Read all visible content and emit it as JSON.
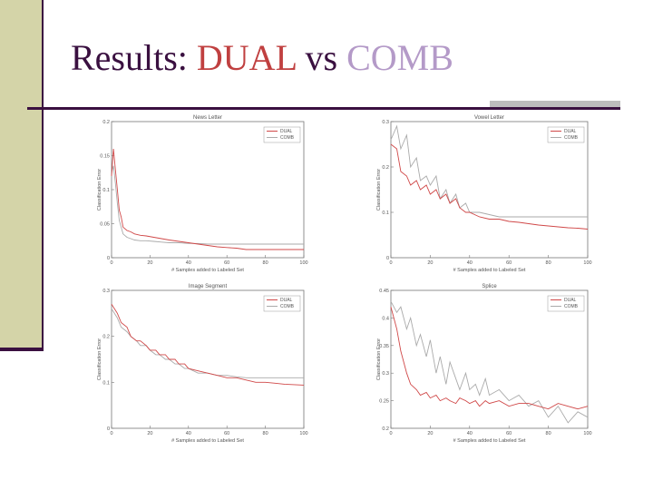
{
  "slide": {
    "title_prefix": "Results: ",
    "title_dual": "DUAL",
    "title_vs": " vs ",
    "title_comb": "COMB",
    "dual_color": "#c04040",
    "comb_color": "#b49ac8"
  },
  "chart_data": [
    {
      "type": "line",
      "title": "News Letter",
      "xlabel": "# Samples added to Labeled Set",
      "ylabel": "Classification Error",
      "xlim": [
        0,
        100
      ],
      "ylim": [
        0,
        0.2
      ],
      "xticks": [
        "0",
        "20",
        "40",
        "60",
        "80",
        "100"
      ],
      "yticks": [
        "0",
        "0.05",
        "0.1",
        "0.15",
        "0.2"
      ],
      "legend": [
        "DUAL",
        "COMB"
      ],
      "legend_position": "top-right",
      "series": [
        {
          "name": "DUAL",
          "color": "#d04848",
          "x": [
            0,
            1,
            2,
            3,
            4,
            5,
            6,
            8,
            10,
            12,
            15,
            18,
            22,
            26,
            30,
            35,
            40,
            45,
            50,
            55,
            60,
            65,
            70,
            75,
            80,
            85,
            90,
            95,
            100
          ],
          "y": [
            0.12,
            0.16,
            0.13,
            0.1,
            0.07,
            0.06,
            0.045,
            0.04,
            0.038,
            0.035,
            0.033,
            0.032,
            0.03,
            0.028,
            0.026,
            0.024,
            0.022,
            0.02,
            0.018,
            0.016,
            0.015,
            0.014,
            0.012,
            0.012,
            0.012,
            0.012,
            0.012,
            0.012,
            0.012
          ]
        },
        {
          "name": "COMB",
          "color": "#aaaaaa",
          "x": [
            0,
            1,
            2,
            3,
            4,
            5,
            6,
            8,
            10,
            12,
            15,
            18,
            22,
            26,
            30,
            35,
            40,
            45,
            50,
            55,
            60,
            65,
            70,
            75,
            80,
            85,
            90,
            95,
            100
          ],
          "y": [
            0.125,
            0.135,
            0.11,
            0.08,
            0.055,
            0.045,
            0.035,
            0.03,
            0.028,
            0.026,
            0.025,
            0.025,
            0.024,
            0.023,
            0.022,
            0.022,
            0.021,
            0.021,
            0.02,
            0.02,
            0.02,
            0.02,
            0.02,
            0.02,
            0.02,
            0.02,
            0.02,
            0.02,
            0.02
          ]
        }
      ]
    },
    {
      "type": "line",
      "title": "Vowel Letter",
      "xlabel": "# Samples added to Labeled Set",
      "ylabel": "Classification Error",
      "xlim": [
        0,
        100
      ],
      "ylim": [
        0,
        0.3
      ],
      "xticks": [
        "0",
        "20",
        "40",
        "60",
        "80",
        "100"
      ],
      "yticks": [
        "0",
        "0.1",
        "0.2",
        "0.3"
      ],
      "legend": [
        "DUAL",
        "COMB"
      ],
      "legend_position": "top-right",
      "series": [
        {
          "name": "DUAL",
          "color": "#d04848",
          "x": [
            0,
            3,
            5,
            8,
            10,
            13,
            15,
            18,
            20,
            23,
            25,
            28,
            30,
            33,
            35,
            38,
            40,
            45,
            50,
            55,
            60,
            65,
            70,
            75,
            80,
            85,
            90,
            95,
            100
          ],
          "y": [
            0.25,
            0.24,
            0.19,
            0.18,
            0.16,
            0.17,
            0.15,
            0.16,
            0.14,
            0.15,
            0.13,
            0.14,
            0.12,
            0.13,
            0.11,
            0.1,
            0.1,
            0.09,
            0.085,
            0.085,
            0.08,
            0.078,
            0.075,
            0.072,
            0.07,
            0.068,
            0.066,
            0.065,
            0.063
          ]
        },
        {
          "name": "COMB",
          "color": "#aaaaaa",
          "x": [
            0,
            3,
            5,
            8,
            10,
            13,
            15,
            18,
            20,
            23,
            25,
            28,
            30,
            33,
            35,
            38,
            40,
            45,
            50,
            55,
            60,
            65,
            70,
            75,
            80,
            85,
            90,
            95,
            100
          ],
          "y": [
            0.26,
            0.29,
            0.24,
            0.27,
            0.2,
            0.22,
            0.17,
            0.18,
            0.16,
            0.18,
            0.13,
            0.15,
            0.12,
            0.14,
            0.11,
            0.12,
            0.1,
            0.1,
            0.095,
            0.09,
            0.09,
            0.09,
            0.09,
            0.09,
            0.09,
            0.09,
            0.09,
            0.09,
            0.09
          ]
        }
      ]
    },
    {
      "type": "line",
      "title": "Image Segment",
      "xlabel": "# Samples added to Labeled Set",
      "ylabel": "Classification Error",
      "xlim": [
        0,
        100
      ],
      "ylim": [
        0,
        0.3
      ],
      "xticks": [
        "0",
        "20",
        "40",
        "60",
        "80",
        "100"
      ],
      "yticks": [
        "0",
        "0.1",
        "0.2",
        "0.3"
      ],
      "legend": [
        "DUAL",
        "COMB"
      ],
      "legend_position": "top-right",
      "series": [
        {
          "name": "DUAL",
          "color": "#d04848",
          "x": [
            0,
            3,
            5,
            8,
            10,
            13,
            15,
            18,
            20,
            23,
            25,
            28,
            30,
            33,
            35,
            38,
            40,
            45,
            50,
            55,
            60,
            65,
            70,
            75,
            80,
            85,
            90,
            95,
            100
          ],
          "y": [
            0.27,
            0.25,
            0.23,
            0.22,
            0.2,
            0.19,
            0.19,
            0.18,
            0.17,
            0.17,
            0.16,
            0.16,
            0.15,
            0.15,
            0.14,
            0.14,
            0.13,
            0.125,
            0.12,
            0.115,
            0.11,
            0.11,
            0.105,
            0.1,
            0.1,
            0.098,
            0.096,
            0.095,
            0.094
          ]
        },
        {
          "name": "COMB",
          "color": "#aaaaaa",
          "x": [
            0,
            3,
            5,
            8,
            10,
            13,
            15,
            18,
            20,
            23,
            25,
            28,
            30,
            33,
            35,
            38,
            40,
            45,
            50,
            55,
            60,
            65,
            70,
            75,
            80,
            85,
            90,
            95,
            100
          ],
          "y": [
            0.26,
            0.24,
            0.22,
            0.21,
            0.2,
            0.19,
            0.18,
            0.18,
            0.17,
            0.16,
            0.16,
            0.15,
            0.15,
            0.14,
            0.14,
            0.13,
            0.13,
            0.12,
            0.12,
            0.115,
            0.115,
            0.112,
            0.11,
            0.11,
            0.11,
            0.11,
            0.11,
            0.11,
            0.11
          ]
        }
      ]
    },
    {
      "type": "line",
      "title": "Splice",
      "xlabel": "# Samples added to Labeled Set",
      "ylabel": "Classification Error",
      "xlim": [
        0,
        100
      ],
      "ylim": [
        0.2,
        0.45
      ],
      "xticks": [
        "0",
        "20",
        "40",
        "60",
        "80",
        "100"
      ],
      "yticks": [
        "0.2",
        "0.25",
        "0.3",
        "0.35",
        "0.4",
        "0.45"
      ],
      "legend": [
        "DUAL",
        "COMB"
      ],
      "legend_position": "top-right",
      "series": [
        {
          "name": "DUAL",
          "color": "#d04848",
          "x": [
            0,
            3,
            5,
            8,
            10,
            13,
            15,
            18,
            20,
            23,
            25,
            28,
            30,
            33,
            35,
            38,
            40,
            43,
            45,
            48,
            50,
            55,
            60,
            65,
            70,
            75,
            80,
            85,
            90,
            95,
            100
          ],
          "y": [
            0.42,
            0.38,
            0.34,
            0.3,
            0.28,
            0.27,
            0.26,
            0.265,
            0.255,
            0.26,
            0.25,
            0.255,
            0.25,
            0.245,
            0.255,
            0.25,
            0.245,
            0.25,
            0.24,
            0.25,
            0.245,
            0.25,
            0.24,
            0.245,
            0.245,
            0.24,
            0.235,
            0.245,
            0.24,
            0.235,
            0.24
          ]
        },
        {
          "name": "COMB",
          "color": "#aaaaaa",
          "x": [
            0,
            3,
            5,
            8,
            10,
            13,
            15,
            18,
            20,
            23,
            25,
            28,
            30,
            33,
            35,
            38,
            40,
            43,
            45,
            48,
            50,
            55,
            60,
            65,
            70,
            75,
            80,
            85,
            90,
            95,
            100
          ],
          "y": [
            0.43,
            0.41,
            0.42,
            0.38,
            0.4,
            0.35,
            0.37,
            0.33,
            0.36,
            0.3,
            0.33,
            0.28,
            0.32,
            0.29,
            0.27,
            0.3,
            0.27,
            0.28,
            0.26,
            0.29,
            0.26,
            0.27,
            0.25,
            0.26,
            0.24,
            0.25,
            0.22,
            0.24,
            0.21,
            0.23,
            0.22
          ]
        }
      ]
    }
  ]
}
